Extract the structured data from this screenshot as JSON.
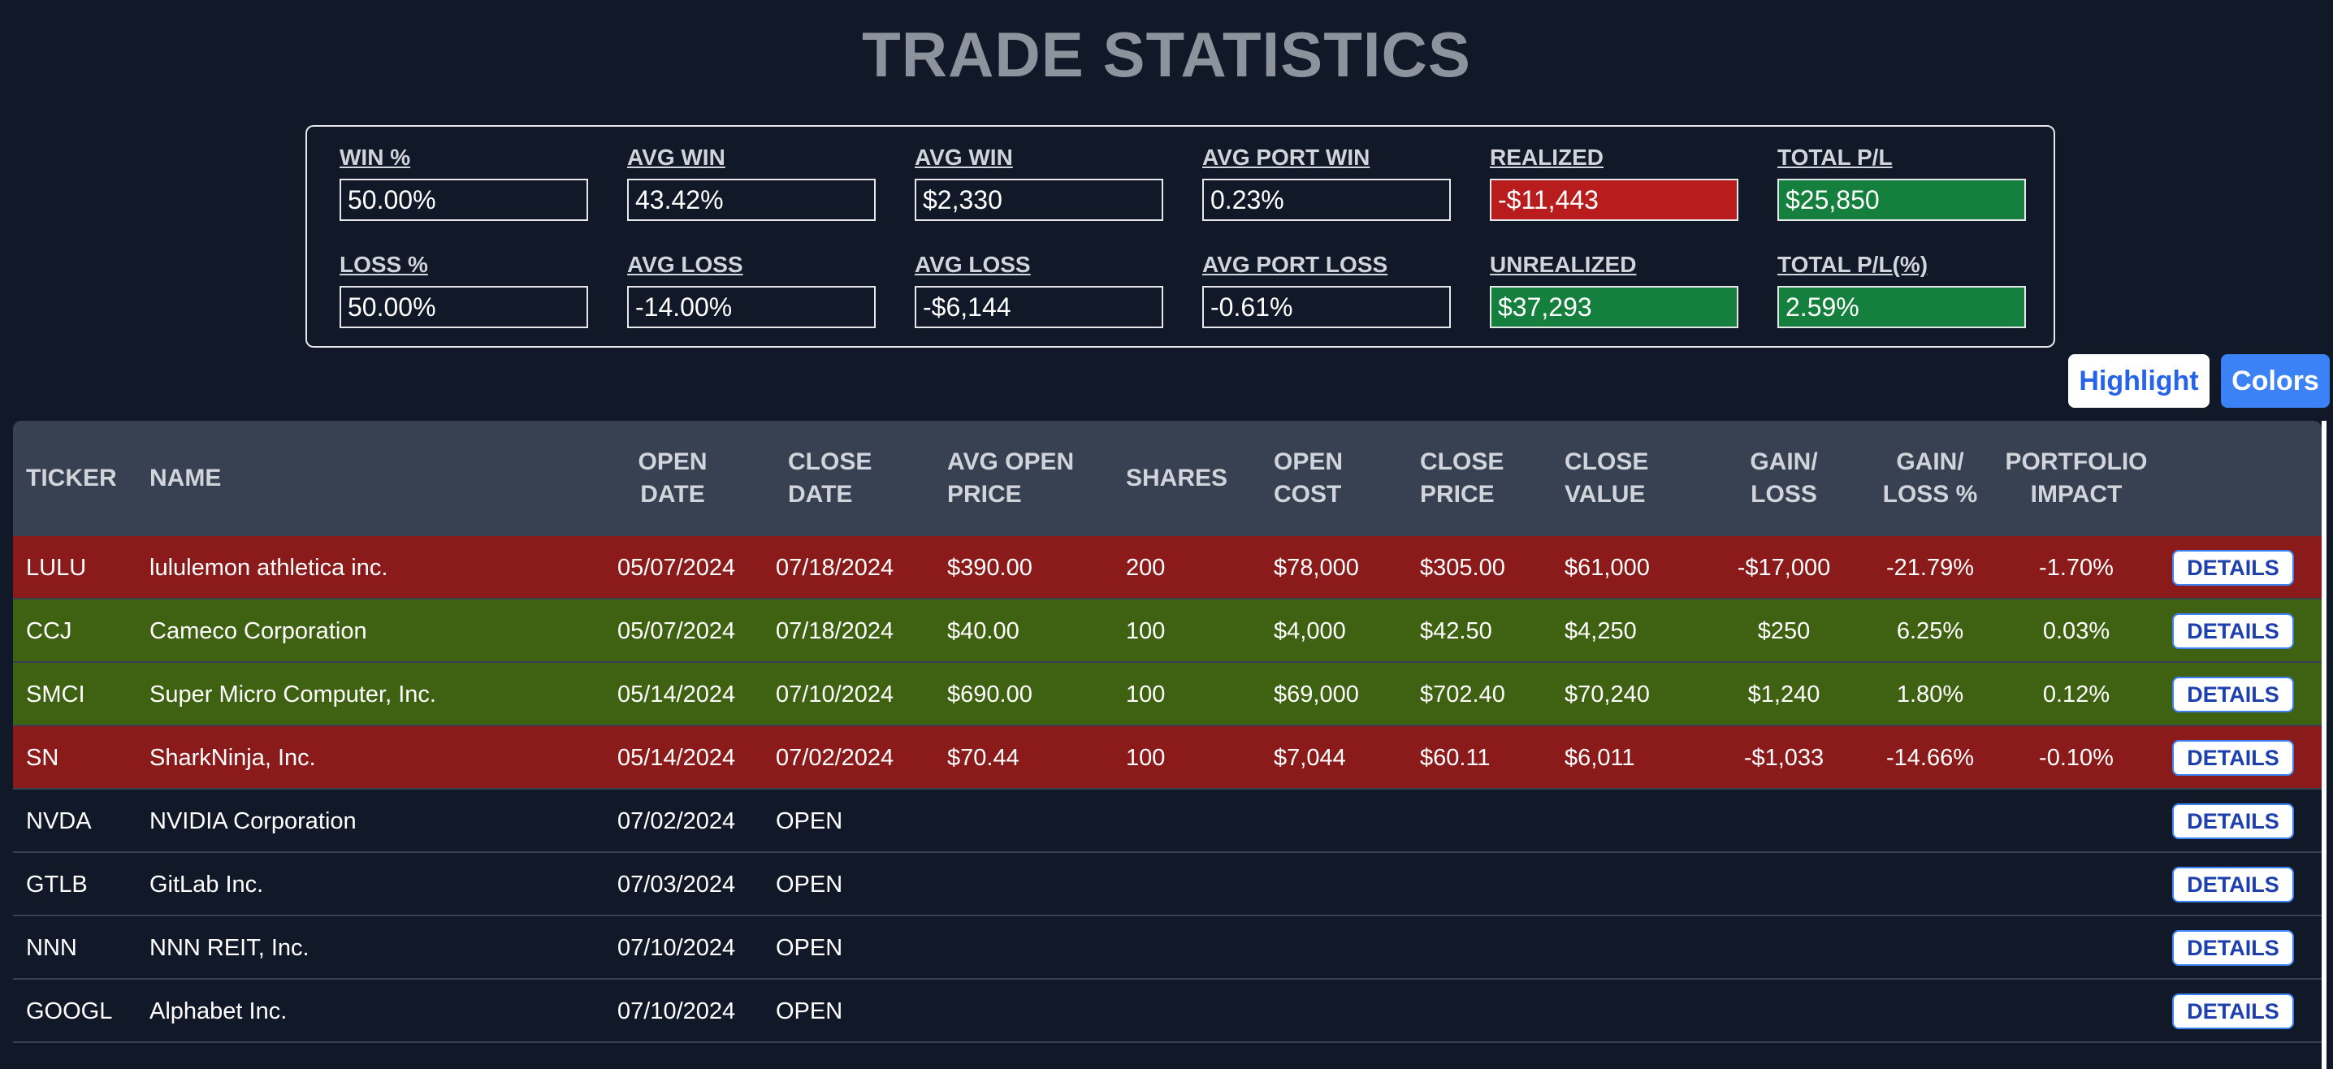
{
  "page": {
    "title": "TRADE STATISTICS"
  },
  "stats": {
    "win_pct": {
      "label": "WIN %",
      "value": "50.00%"
    },
    "avg_win_pct": {
      "label": "AVG WIN",
      "value": "43.42%"
    },
    "avg_win_amt": {
      "label": "AVG WIN",
      "value": "$2,330"
    },
    "avg_port_win": {
      "label": "AVG PORT WIN",
      "value": "0.23%"
    },
    "realized": {
      "label": "REALIZED",
      "value": "-$11,443",
      "color": "#b91c1c"
    },
    "total_pl": {
      "label": "TOTAL P/L",
      "value": "$25,850",
      "color": "#15803d"
    },
    "loss_pct": {
      "label": "LOSS %",
      "value": "50.00%"
    },
    "avg_loss_pct": {
      "label": "AVG LOSS",
      "value": "-14.00%"
    },
    "avg_loss_amt": {
      "label": "AVG LOSS",
      "value": "-$6,144"
    },
    "avg_port_loss": {
      "label": "AVG PORT LOSS",
      "value": "-0.61%"
    },
    "unrealized": {
      "label": "UNREALIZED",
      "value": "$37,293",
      "color": "#15803d"
    },
    "total_pl_pct": {
      "label": "TOTAL P/L(%)",
      "value": "2.59%",
      "color": "#15803d"
    }
  },
  "controls": {
    "highlight_label": "Highlight",
    "colors_label": "Colors"
  },
  "table": {
    "headers": {
      "ticker": "TICKER",
      "name": "NAME",
      "open_date": [
        "OPEN",
        "DATE"
      ],
      "close_date": [
        "CLOSE",
        "DATE"
      ],
      "avg_open_price": [
        "AVG OPEN",
        "PRICE"
      ],
      "shares": "SHARES",
      "open_cost": [
        "OPEN",
        "COST"
      ],
      "close_price": [
        "CLOSE",
        "PRICE"
      ],
      "close_value": [
        "CLOSE",
        "VALUE"
      ],
      "gain_loss": [
        "GAIN/",
        "LOSS"
      ],
      "gain_loss_pct": [
        "GAIN/",
        "LOSS %"
      ],
      "portfolio_impact": [
        "PORTFOLIO",
        "IMPACT"
      ]
    },
    "details_label": "DETAILS",
    "row_colors": {
      "loss": "#8b1a1a",
      "gain": "#3f6212"
    },
    "rows": [
      {
        "status": "loss",
        "ticker": "LULU",
        "name": "lululemon athletica inc.",
        "open_date": "05/07/2024",
        "close_date": "07/18/2024",
        "avg_open_price": "$390.00",
        "shares": "200",
        "open_cost": "$78,000",
        "close_price": "$305.00",
        "close_value": "$61,000",
        "gain_loss": "-$17,000",
        "gain_loss_pct": "-21.79%",
        "portfolio_impact": "-1.70%"
      },
      {
        "status": "gain",
        "ticker": "CCJ",
        "name": "Cameco Corporation",
        "open_date": "05/07/2024",
        "close_date": "07/18/2024",
        "avg_open_price": "$40.00",
        "shares": "100",
        "open_cost": "$4,000",
        "close_price": "$42.50",
        "close_value": "$4,250",
        "gain_loss": "$250",
        "gain_loss_pct": "6.25%",
        "portfolio_impact": "0.03%"
      },
      {
        "status": "gain",
        "ticker": "SMCI",
        "name": "Super Micro Computer, Inc.",
        "open_date": "05/14/2024",
        "close_date": "07/10/2024",
        "avg_open_price": "$690.00",
        "shares": "100",
        "open_cost": "$69,000",
        "close_price": "$702.40",
        "close_value": "$70,240",
        "gain_loss": "$1,240",
        "gain_loss_pct": "1.80%",
        "portfolio_impact": "0.12%"
      },
      {
        "status": "loss",
        "ticker": "SN",
        "name": "SharkNinja, Inc.",
        "open_date": "05/14/2024",
        "close_date": "07/02/2024",
        "avg_open_price": "$70.44",
        "shares": "100",
        "open_cost": "$7,044",
        "close_price": "$60.11",
        "close_value": "$6,011",
        "gain_loss": "-$1,033",
        "gain_loss_pct": "-14.66%",
        "portfolio_impact": "-0.10%"
      },
      {
        "status": "open",
        "ticker": "NVDA",
        "name": "NVIDIA Corporation",
        "open_date": "07/02/2024",
        "close_date": "OPEN"
      },
      {
        "status": "open",
        "ticker": "GTLB",
        "name": "GitLab Inc.",
        "open_date": "07/03/2024",
        "close_date": "OPEN"
      },
      {
        "status": "open",
        "ticker": "NNN",
        "name": "NNN REIT, Inc.",
        "open_date": "07/10/2024",
        "close_date": "OPEN"
      },
      {
        "status": "open",
        "ticker": "GOOGL",
        "name": "Alphabet Inc.",
        "open_date": "07/10/2024",
        "close_date": "OPEN"
      }
    ]
  }
}
